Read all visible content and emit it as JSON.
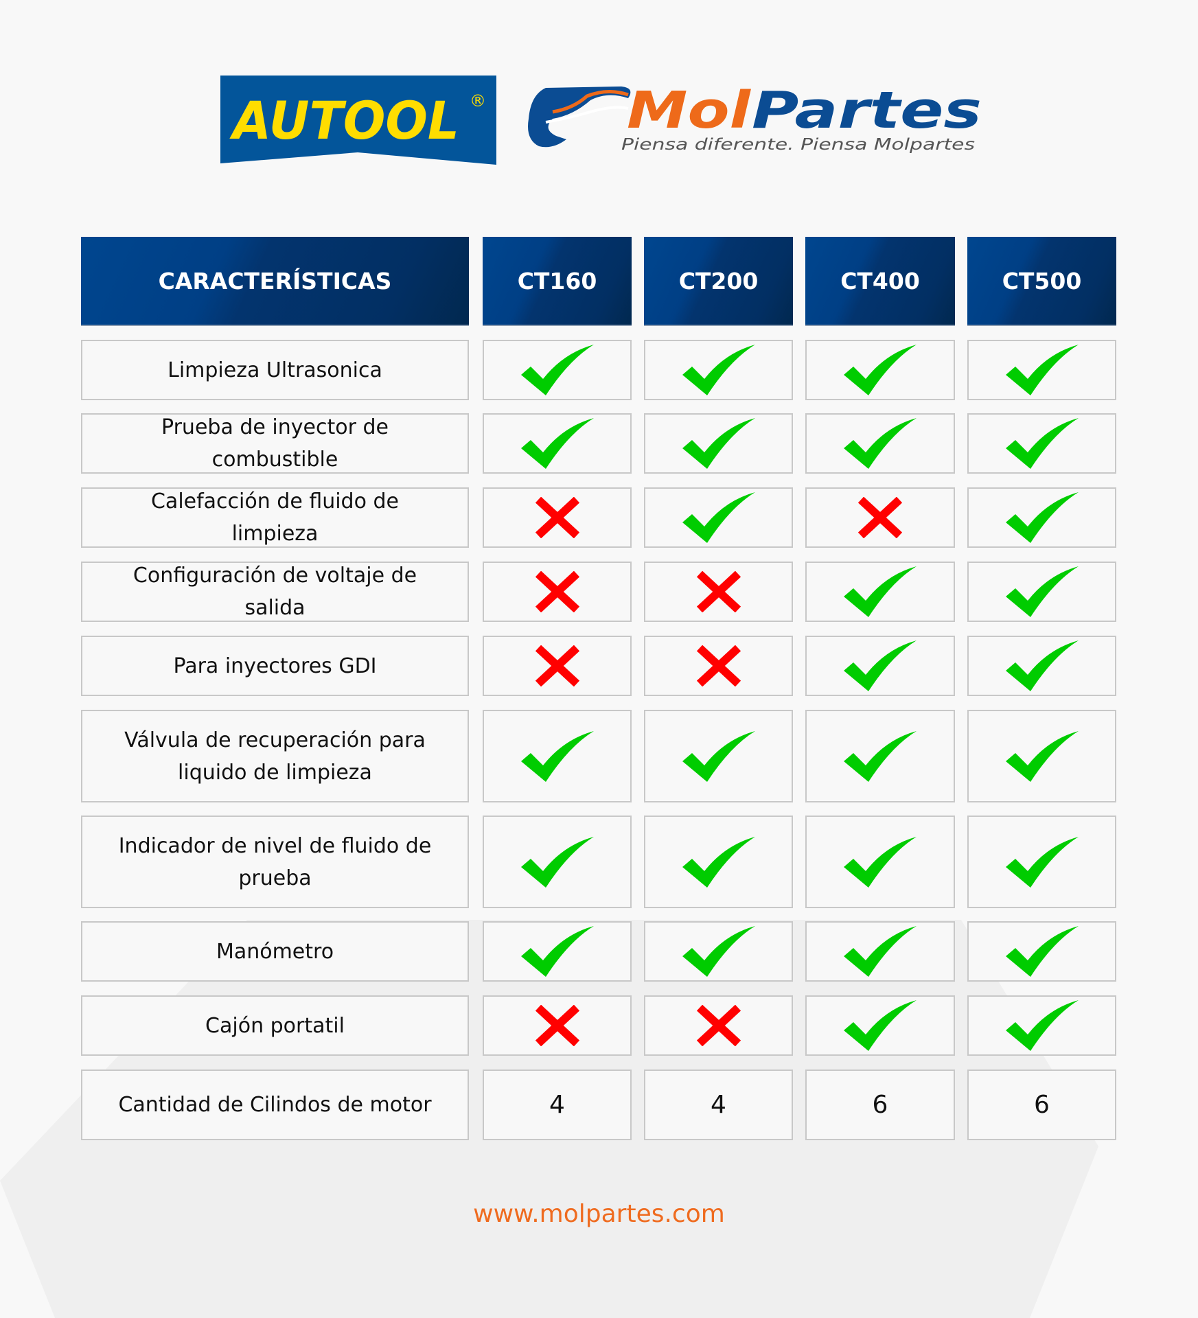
{
  "brands": {
    "autool": {
      "text": "AUTOOL",
      "registered": "®",
      "bg": "#03559a",
      "fg": "#ffdd00"
    },
    "molpartes": {
      "part1": "Mol",
      "part2": "Partes",
      "tagline": "Piensa diferente. Piensa Molpartes",
      "orange": "#ee6a1a",
      "blue": "#0b4c93"
    }
  },
  "table": {
    "headers": [
      "CARACTERÍSTICAS",
      "CT160",
      "CT200",
      "CT400",
      "CT500"
    ],
    "rows": [
      {
        "feature": "Limpieza Ultrasonica",
        "values": [
          "check",
          "check",
          "check",
          "check"
        ]
      },
      {
        "feature": "Prueba de inyector de combustible",
        "values": [
          "check",
          "check",
          "check",
          "check"
        ]
      },
      {
        "feature": "Calefacción de fluido de limpieza",
        "values": [
          "cross",
          "check",
          "cross",
          "check"
        ]
      },
      {
        "feature": "Configuración de voltaje de salida",
        "values": [
          "cross",
          "cross",
          "check",
          "check"
        ]
      },
      {
        "feature": "Para inyectores GDI",
        "values": [
          "cross",
          "cross",
          "check",
          "check"
        ]
      },
      {
        "feature": "Válvula de recuperación para liquido de limpieza",
        "values": [
          "check",
          "check",
          "check",
          "check"
        ]
      },
      {
        "feature": "Indicador de nivel de fluido de prueba",
        "values": [
          "check",
          "check",
          "check",
          "check"
        ]
      },
      {
        "feature": "Manómetro",
        "values": [
          "check",
          "check",
          "check",
          "check"
        ]
      },
      {
        "feature": "Cajón portatil",
        "values": [
          "cross",
          "cross",
          "check",
          "check"
        ]
      },
      {
        "feature": "Cantidad de Cilindos de motor",
        "values": [
          "4",
          "4",
          "6",
          "6"
        ]
      }
    ],
    "colors": {
      "check": "#00cc00",
      "cross": "#ff0000",
      "header": "#003f85"
    }
  },
  "footer": {
    "url": "www.molpartes.com"
  }
}
